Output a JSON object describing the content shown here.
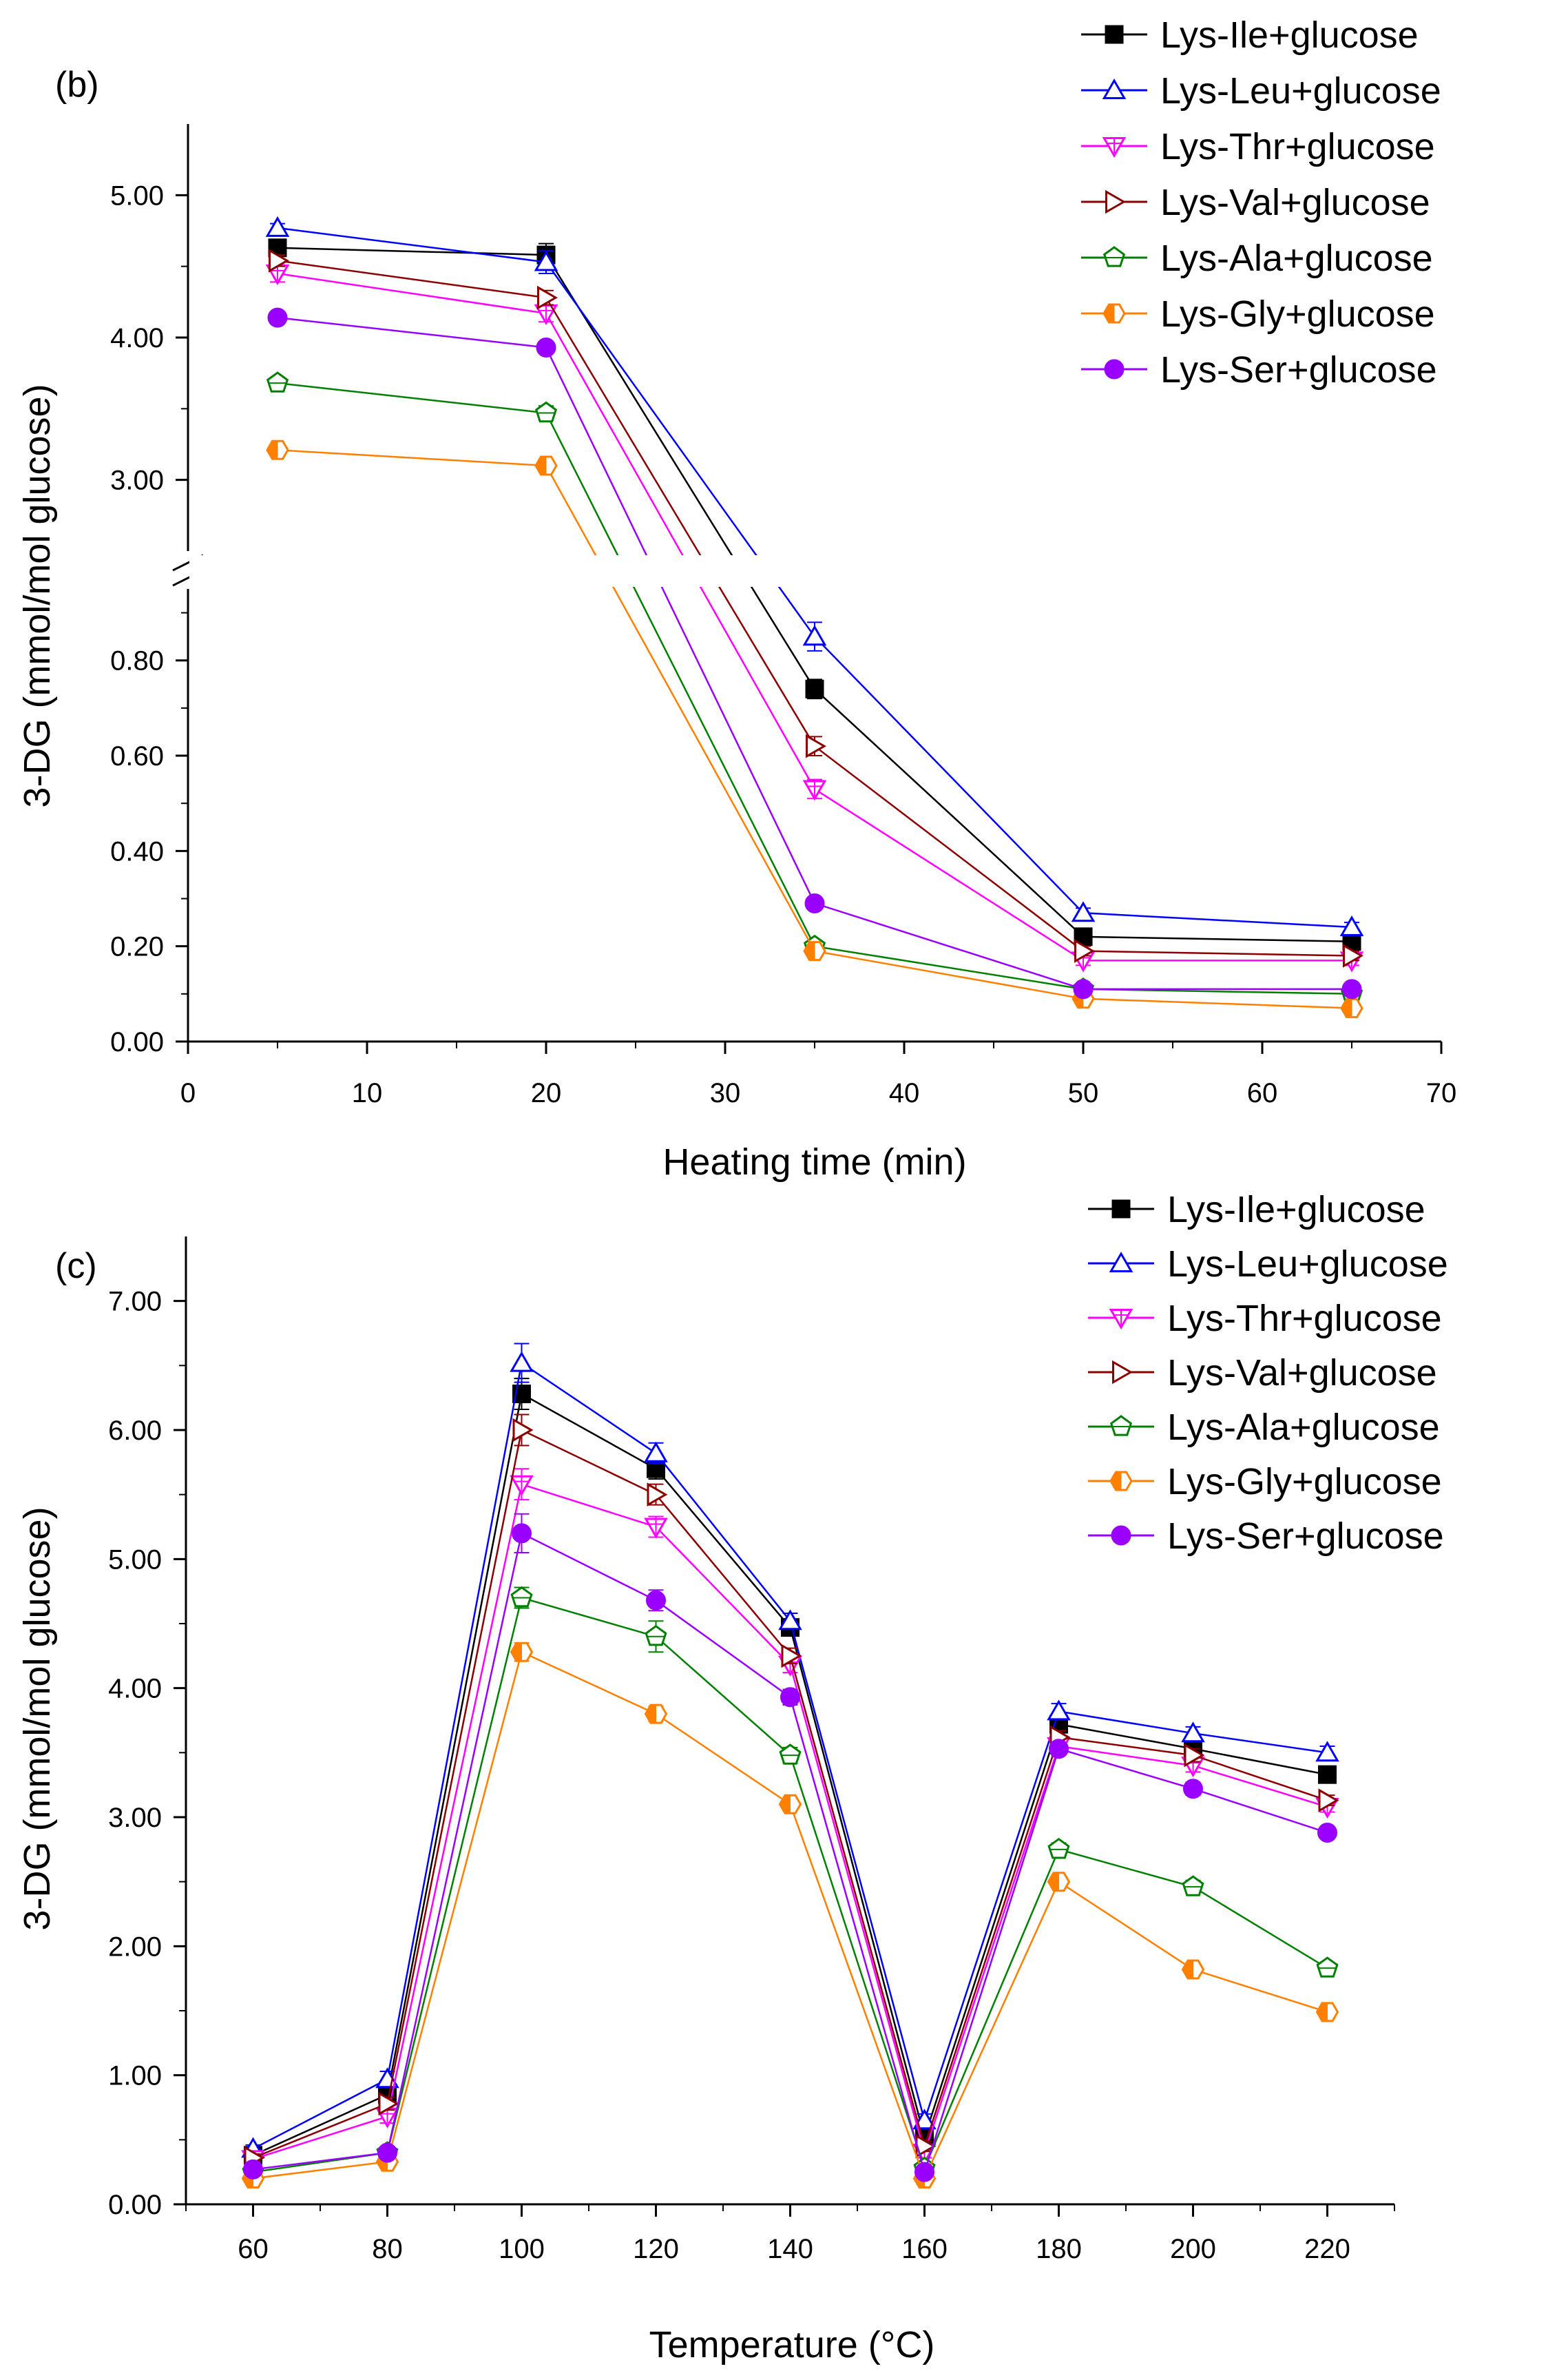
{
  "chart_data": [
    {
      "panel": "(b)",
      "type": "line",
      "xlabel": "Heating time (min)",
      "ylabel": "3-DG (mmol/mol glucose)",
      "xlim": [
        0,
        70
      ],
      "x_ticks": [
        0,
        10,
        20,
        30,
        40,
        50,
        60,
        70
      ],
      "y_axis_break": true,
      "ylim_lower": [
        0,
        0.95
      ],
      "ylim_upper": [
        2.5,
        5.5
      ],
      "y_ticks_lower": [
        "0.00",
        "0.20",
        "0.40",
        "0.60",
        "0.80"
      ],
      "y_ticks_upper": [
        "3.00",
        "4.00",
        "5.00"
      ],
      "legend_position": "top-right",
      "x": [
        5,
        20,
        35,
        50,
        65
      ],
      "series": [
        {
          "name": "Lys-Ile+glucose",
          "values": [
            4.63,
            4.58,
            0.74,
            0.22,
            0.21
          ],
          "errors": [
            0.05,
            0.08,
            0.02,
            0.01,
            0.01
          ],
          "color": "#000000",
          "marker": "square-filled"
        },
        {
          "name": "Lys-Leu+glucose",
          "values": [
            4.77,
            4.53,
            0.85,
            0.27,
            0.24
          ],
          "errors": [
            0.03,
            0.08,
            0.03,
            0.01,
            0.01
          ],
          "color": "#0000FF",
          "marker": "triangle-up-open"
        },
        {
          "name": "Lys-Thr+glucose",
          "values": [
            4.45,
            4.17,
            0.53,
            0.17,
            0.17
          ],
          "errors": [
            0.06,
            0.06,
            0.02,
            0.01,
            0.01
          ],
          "color": "#FF00FF",
          "marker": "triangle-down-open"
        },
        {
          "name": "Lys-Val+glucose",
          "values": [
            4.54,
            4.28,
            0.62,
            0.19,
            0.18
          ],
          "errors": [
            0.04,
            0.05,
            0.02,
            0.01,
            0.01
          ],
          "color": "#8B0000",
          "marker": "triangle-right-open"
        },
        {
          "name": "Lys-Ala+glucose",
          "values": [
            3.68,
            3.47,
            0.2,
            0.11,
            0.1
          ],
          "errors": [
            0.04,
            0.05,
            0.01,
            0.01,
            0.01
          ],
          "color": "#008000",
          "marker": "pentagon-open"
        },
        {
          "name": "Lys-Gly+glucose",
          "values": [
            3.21,
            3.1,
            0.19,
            0.09,
            0.07
          ],
          "errors": [
            0.04,
            0.04,
            0.01,
            0.01,
            0.01
          ],
          "color": "#FF8000",
          "marker": "hexagon-half"
        },
        {
          "name": "Lys-Ser+glucose",
          "values": [
            4.14,
            3.93,
            0.29,
            0.11,
            0.11
          ],
          "errors": [
            0.03,
            0.04,
            0.01,
            0.01,
            0.01
          ],
          "color": "#9900FF",
          "marker": "circle-filled"
        }
      ]
    },
    {
      "panel": "(c)",
      "type": "line",
      "xlabel": "Temperature (°C)",
      "ylabel": "3-DG (mmol/mol glucose)",
      "xlim": [
        50,
        230
      ],
      "ylim": [
        0,
        7.5
      ],
      "x_ticks": [
        60,
        80,
        100,
        120,
        140,
        160,
        180,
        200,
        220
      ],
      "y_ticks": [
        "0.00",
        "1.00",
        "2.00",
        "3.00",
        "4.00",
        "5.00",
        "6.00",
        "7.00"
      ],
      "legend_position": "top-right",
      "x": [
        60,
        80,
        100,
        120,
        140,
        160,
        180,
        200,
        220
      ],
      "series": [
        {
          "name": "Lys-Ile+glucose",
          "values": [
            0.38,
            0.85,
            6.28,
            5.7,
            4.47,
            0.52,
            3.72,
            3.53,
            3.33
          ],
          "errors": [
            0.03,
            0.06,
            0.12,
            0.08,
            0.06,
            0.05,
            0.05,
            0.05,
            0.04
          ],
          "color": "#000000",
          "marker": "square-filled"
        },
        {
          "name": "Lys-Leu+glucose",
          "values": [
            0.43,
            0.97,
            6.52,
            5.82,
            4.52,
            0.65,
            3.82,
            3.65,
            3.5
          ],
          "errors": [
            0.03,
            0.06,
            0.15,
            0.08,
            0.06,
            0.05,
            0.06,
            0.05,
            0.05
          ],
          "color": "#0000FF",
          "marker": "triangle-up-open"
        },
        {
          "name": "Lys-Thr+glucose",
          "values": [
            0.35,
            0.68,
            5.58,
            5.25,
            4.18,
            0.4,
            3.55,
            3.4,
            3.08
          ],
          "errors": [
            0.03,
            0.05,
            0.12,
            0.08,
            0.06,
            0.04,
            0.05,
            0.05,
            0.04
          ],
          "color": "#FF00FF",
          "marker": "triangle-down-open"
        },
        {
          "name": "Lys-Val+glucose",
          "values": [
            0.36,
            0.78,
            6.0,
            5.5,
            4.25,
            0.45,
            3.62,
            3.48,
            3.13
          ],
          "errors": [
            0.03,
            0.05,
            0.12,
            0.08,
            0.06,
            0.04,
            0.05,
            0.05,
            0.04
          ],
          "color": "#8B0000",
          "marker": "triangle-right-open"
        },
        {
          "name": "Lys-Ala+glucose",
          "values": [
            0.25,
            0.4,
            4.7,
            4.4,
            3.48,
            0.28,
            2.75,
            2.46,
            1.83
          ],
          "errors": [
            0.02,
            0.03,
            0.08,
            0.12,
            0.06,
            0.03,
            0.05,
            0.05,
            0.04
          ],
          "color": "#008000",
          "marker": "pentagon-open"
        },
        {
          "name": "Lys-Gly+glucose",
          "values": [
            0.2,
            0.33,
            4.28,
            3.8,
            3.1,
            0.2,
            2.5,
            1.82,
            1.49
          ],
          "errors": [
            0.02,
            0.03,
            0.07,
            0.06,
            0.05,
            0.02,
            0.05,
            0.04,
            0.04
          ],
          "color": "#FF8000",
          "marker": "hexagon-half"
        },
        {
          "name": "Lys-Ser+glucose",
          "values": [
            0.27,
            0.4,
            5.2,
            4.68,
            3.93,
            0.25,
            3.53,
            3.22,
            2.88
          ],
          "errors": [
            0.02,
            0.03,
            0.15,
            0.08,
            0.06,
            0.03,
            0.05,
            0.05,
            0.04
          ],
          "color": "#9900FF",
          "marker": "circle-filled"
        }
      ]
    }
  ]
}
